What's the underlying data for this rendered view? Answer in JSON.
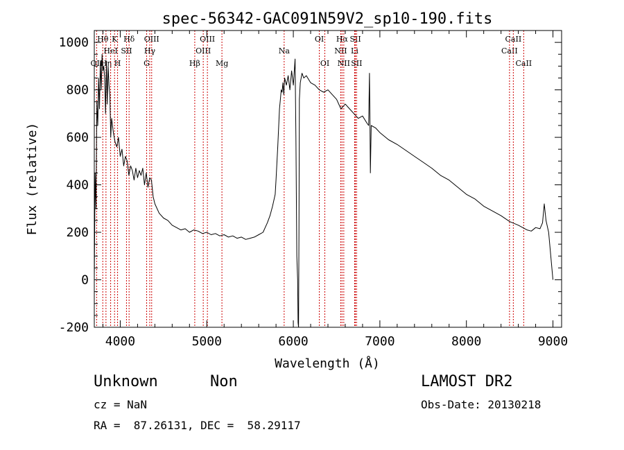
{
  "chart_data": {
    "type": "line",
    "title": "spec-56342-GAC091N59V2_sp10-190.fits",
    "xlabel": "Wavelength (Å)",
    "ylabel": "Flux (relative)",
    "xlim": [
      3700,
      9100
    ],
    "ylim": [
      -200,
      1050
    ],
    "xticks": [
      4000,
      5000,
      6000,
      7000,
      8000,
      9000
    ],
    "yticks": [
      -200,
      0,
      200,
      400,
      600,
      800,
      1000
    ],
    "grid": false,
    "line_color": "#000000",
    "marker_color": "#cc0000",
    "series": [
      {
        "x": [
          3700,
          3710,
          3720,
          3730,
          3740,
          3750,
          3760,
          3770,
          3780,
          3790,
          3800,
          3810,
          3820,
          3830,
          3840,
          3850,
          3860,
          3870,
          3880,
          3890,
          3900,
          3920,
          3940,
          3960,
          3980,
          4000,
          4020,
          4040,
          4060,
          4080,
          4100,
          4120,
          4140,
          4160,
          4180,
          4200,
          4220,
          4240,
          4260,
          4280,
          4300,
          4320,
          4340,
          4360,
          4380,
          4400,
          4450,
          4500,
          4550,
          4600,
          4650,
          4700,
          4750,
          4800,
          4850,
          4900,
          4950,
          5000,
          5050,
          5100,
          5150,
          5200,
          5250,
          5300,
          5350,
          5400,
          5450,
          5500,
          5550,
          5600,
          5650,
          5700,
          5730,
          5760,
          5790,
          5800,
          5820,
          5840,
          5850,
          5860,
          5870,
          5880,
          5890,
          5900,
          5920,
          5940,
          5960,
          5980,
          6000,
          6020,
          6030,
          6040,
          6050,
          6055,
          6060,
          6065,
          6070,
          6080,
          6100,
          6120,
          6150,
          6200,
          6250,
          6300,
          6350,
          6400,
          6450,
          6500,
          6550,
          6600,
          6650,
          6700,
          6750,
          6800,
          6850,
          6870,
          6880,
          6885,
          6890,
          6900,
          6950,
          7000,
          7100,
          7200,
          7300,
          7400,
          7500,
          7600,
          7700,
          7800,
          7900,
          8000,
          8100,
          8200,
          8300,
          8400,
          8500,
          8600,
          8700,
          8750,
          8800,
          8850,
          8880,
          8900,
          8920,
          8950,
          9000
        ],
        "y": [
          0,
          450,
          300,
          750,
          650,
          850,
          720,
          920,
          800,
          950,
          880,
          900,
          850,
          700,
          920,
          740,
          900,
          820,
          780,
          600,
          680,
          620,
          580,
          560,
          600,
          520,
          550,
          480,
          520,
          500,
          440,
          480,
          460,
          420,
          470,
          430,
          460,
          440,
          470,
          400,
          450,
          390,
          430,
          420,
          350,
          320,
          280,
          260,
          250,
          230,
          220,
          210,
          215,
          200,
          210,
          205,
          195,
          200,
          190,
          195,
          185,
          190,
          180,
          185,
          175,
          180,
          170,
          175,
          180,
          190,
          200,
          240,
          270,
          310,
          360,
          420,
          560,
          720,
          760,
          800,
          790,
          830,
          780,
          850,
          820,
          860,
          800,
          880,
          820,
          930,
          600,
          100,
          0,
          -180,
          -200,
          200,
          760,
          830,
          870,
          850,
          860,
          830,
          820,
          800,
          790,
          800,
          780,
          760,
          720,
          740,
          720,
          700,
          680,
          690,
          660,
          650,
          870,
          700,
          450,
          650,
          640,
          620,
          590,
          570,
          545,
          520,
          495,
          470,
          440,
          420,
          390,
          360,
          340,
          310,
          290,
          270,
          245,
          230,
          210,
          205,
          220,
          215,
          240,
          320,
          250,
          200,
          0
        ]
      }
    ],
    "line_markers": [
      {
        "label": "OII",
        "x": 3727,
        "row": 3
      },
      {
        "label": "Hθ",
        "x": 3798,
        "row": 1
      },
      {
        "label": "Hη",
        "x": 3835,
        "row": 3
      },
      {
        "label": "HeI",
        "x": 3889,
        "row": 2
      },
      {
        "label": "K",
        "x": 3934,
        "row": 1
      },
      {
        "label": "H",
        "x": 3969,
        "row": 3
      },
      {
        "label": "SII",
        "x": 4072,
        "row": 2
      },
      {
        "label": "Hδ",
        "x": 4102,
        "row": 1
      },
      {
        "label": "G",
        "x": 4305,
        "row": 3
      },
      {
        "label": "Hγ",
        "x": 4341,
        "row": 2
      },
      {
        "label": "OIII",
        "x": 4363,
        "row": 1
      },
      {
        "label": "Hβ",
        "x": 4861,
        "row": 3
      },
      {
        "label": "OIII",
        "x": 4959,
        "row": 2
      },
      {
        "label": "OIII",
        "x": 5007,
        "row": 1
      },
      {
        "label": "Mg",
        "x": 5175,
        "row": 3
      },
      {
        "label": "Na",
        "x": 5894,
        "row": 2
      },
      {
        "label": "OI",
        "x": 6300,
        "row": 1
      },
      {
        "label": "OI",
        "x": 6364,
        "row": 3
      },
      {
        "label": "NII",
        "x": 6548,
        "row": 2
      },
      {
        "label": "Hα",
        "x": 6563,
        "row": 1
      },
      {
        "label": "NII",
        "x": 6583,
        "row": 3
      },
      {
        "label": "Li",
        "x": 6708,
        "row": 2
      },
      {
        "label": "SII",
        "x": 6717,
        "row": 1
      },
      {
        "label": "SII",
        "x": 6731,
        "row": 3
      },
      {
        "label": "CaII",
        "x": 8498,
        "row": 2
      },
      {
        "label": "CaII",
        "x": 8542,
        "row": 1
      },
      {
        "label": "CaII",
        "x": 8662,
        "row": 3
      }
    ]
  },
  "info": {
    "class": "Unknown",
    "subclass": "Non",
    "survey": "LAMOST DR2",
    "cz": "cz = NaN",
    "obs_date": "Obs-Date: 20130218",
    "coords": "RA =  87.26131, DEC =  58.29117"
  }
}
